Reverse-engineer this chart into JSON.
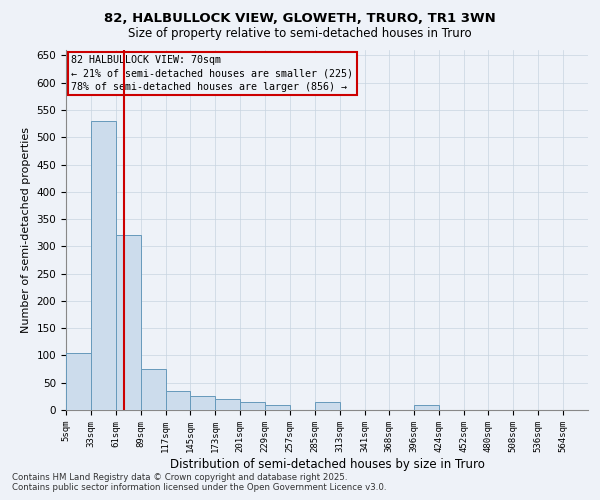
{
  "title1": "82, HALBULLOCK VIEW, GLOWETH, TRURO, TR1 3WN",
  "title2": "Size of property relative to semi-detached houses in Truro",
  "xlabel": "Distribution of semi-detached houses by size in Truro",
  "ylabel": "Number of semi-detached properties",
  "bins_left": [
    5,
    33,
    61,
    89,
    117,
    145,
    173,
    201,
    229,
    257,
    285,
    313,
    341,
    368,
    396,
    424,
    452,
    480,
    508,
    536,
    564
  ],
  "counts": [
    105,
    530,
    320,
    75,
    35,
    25,
    20,
    15,
    10,
    0,
    15,
    0,
    0,
    0,
    10,
    0,
    0,
    0,
    0,
    0
  ],
  "property_size": 70,
  "property_name": "82 HALBULLOCK VIEW: 70sqm",
  "pct_smaller": 21,
  "pct_larger": 78,
  "n_smaller": 225,
  "n_larger": 856,
  "bar_facecolor": "#ccdcec",
  "bar_edgecolor": "#6699bb",
  "vline_color": "#cc0000",
  "annotation_box_edgecolor": "#cc0000",
  "grid_color": "#c8d4e0",
  "background_color": "#eef2f8",
  "ylim_max": 660,
  "ytick_step": 50,
  "footer1": "Contains HM Land Registry data © Crown copyright and database right 2025.",
  "footer2": "Contains public sector information licensed under the Open Government Licence v3.0."
}
